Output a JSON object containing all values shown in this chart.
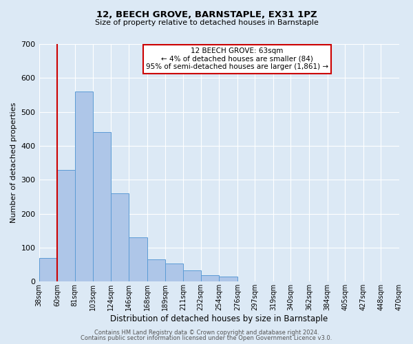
{
  "title": "12, BEECH GROVE, BARNSTAPLE, EX31 1PZ",
  "subtitle": "Size of property relative to detached houses in Barnstaple",
  "xlabel": "Distribution of detached houses by size in Barnstaple",
  "ylabel": "Number of detached properties",
  "bin_labels": [
    "38sqm",
    "60sqm",
    "81sqm",
    "103sqm",
    "124sqm",
    "146sqm",
    "168sqm",
    "189sqm",
    "211sqm",
    "232sqm",
    "254sqm",
    "276sqm",
    "297sqm",
    "319sqm",
    "340sqm",
    "362sqm",
    "384sqm",
    "405sqm",
    "427sqm",
    "448sqm",
    "470sqm"
  ],
  "bar_values": [
    70,
    330,
    560,
    440,
    260,
    130,
    65,
    53,
    33,
    18,
    15,
    0,
    0,
    0,
    0,
    0,
    0,
    0,
    0,
    0,
    10
  ],
  "bar_color": "#aec6e8",
  "bar_edge_color": "#5b9bd5",
  "background_color": "#dce9f5",
  "grid_color": "#ffffff",
  "vline_x_index": 1,
  "vline_color": "#cc0000",
  "annotation_title": "12 BEECH GROVE: 63sqm",
  "annotation_line1": "← 4% of detached houses are smaller (84)",
  "annotation_line2": "95% of semi-detached houses are larger (1,861) →",
  "annotation_box_color": "#ffffff",
  "annotation_border_color": "#cc0000",
  "ylim": [
    0,
    700
  ],
  "yticks": [
    0,
    100,
    200,
    300,
    400,
    500,
    600,
    700
  ],
  "footer1": "Contains HM Land Registry data © Crown copyright and database right 2024.",
  "footer2": "Contains public sector information licensed under the Open Government Licence v3.0.",
  "bin_edges": [
    38,
    60,
    81,
    103,
    124,
    146,
    168,
    189,
    211,
    232,
    254,
    276,
    297,
    319,
    340,
    362,
    384,
    405,
    427,
    448,
    470
  ],
  "figwidth": 6.0,
  "figheight": 5.0,
  "dpi": 100
}
